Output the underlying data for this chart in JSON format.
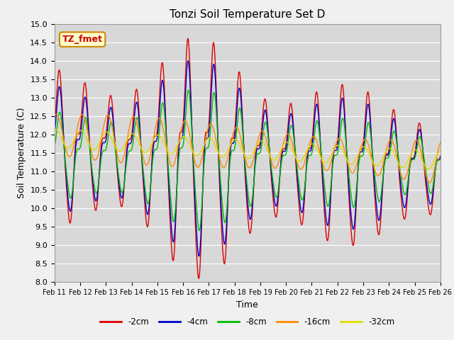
{
  "title": "Tonzi Soil Temperature Set D",
  "xlabel": "Time",
  "ylabel": "Soil Temperature (C)",
  "ylim": [
    8.0,
    15.0
  ],
  "yticks": [
    8.0,
    8.5,
    9.0,
    9.5,
    10.0,
    10.5,
    11.0,
    11.5,
    12.0,
    12.5,
    13.0,
    13.5,
    14.0,
    14.5,
    15.0
  ],
  "xtick_labels": [
    "Feb 11",
    "Feb 12",
    "Feb 13",
    "Feb 14",
    "Feb 15",
    "Feb 16",
    "Feb 17",
    "Feb 18",
    "Feb 19",
    "Feb 20",
    "Feb 21",
    "Feb 22",
    "Feb 23",
    "Feb 24",
    "Feb 25",
    "Feb 26"
  ],
  "line_colors": [
    "#dd0000",
    "#0000cc",
    "#00bb00",
    "#ff8800",
    "#dddd00"
  ],
  "line_labels": [
    "-2cm",
    "-4cm",
    "-8cm",
    "-16cm",
    "-32cm"
  ],
  "fig_bg_color": "#f0f0f0",
  "plot_bg_color": "#d8d8d8",
  "annotation_label": "TZ_fmet",
  "annotation_color": "#cc0000",
  "annotation_bg": "#ffffcc",
  "annotation_border": "#cc8800",
  "grid_color": "#ffffff",
  "figsize": [
    6.4,
    4.8
  ],
  "dpi": 100
}
